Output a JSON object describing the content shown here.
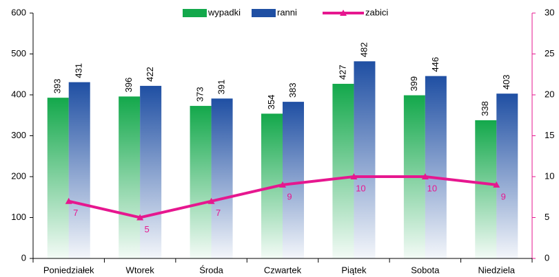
{
  "chart_data": {
    "type": "bar",
    "categories": [
      "Poniedziałek",
      "Wtorek",
      "Środa",
      "Czwartek",
      "Piątek",
      "Sobota",
      "Niedziela"
    ],
    "series": [
      {
        "name": "wypadki",
        "type": "bar",
        "color": "#13a84b",
        "values": [
          393,
          396,
          373,
          354,
          427,
          399,
          338
        ]
      },
      {
        "name": "ranni",
        "type": "bar",
        "color": "#1f4fa3",
        "values": [
          431,
          422,
          391,
          383,
          482,
          446,
          403
        ]
      },
      {
        "name": "zabici",
        "type": "line",
        "color": "#e6178f",
        "axis": "y2",
        "values": [
          7,
          5,
          7,
          9,
          10,
          10,
          9
        ]
      }
    ],
    "ylim": [
      0,
      600
    ],
    "yticks": [
      0,
      100,
      200,
      300,
      400,
      500,
      600
    ],
    "y2lim": [
      0,
      30
    ],
    "y2ticks": [
      0,
      5,
      10,
      15,
      20,
      25,
      30
    ],
    "legend": "top"
  }
}
